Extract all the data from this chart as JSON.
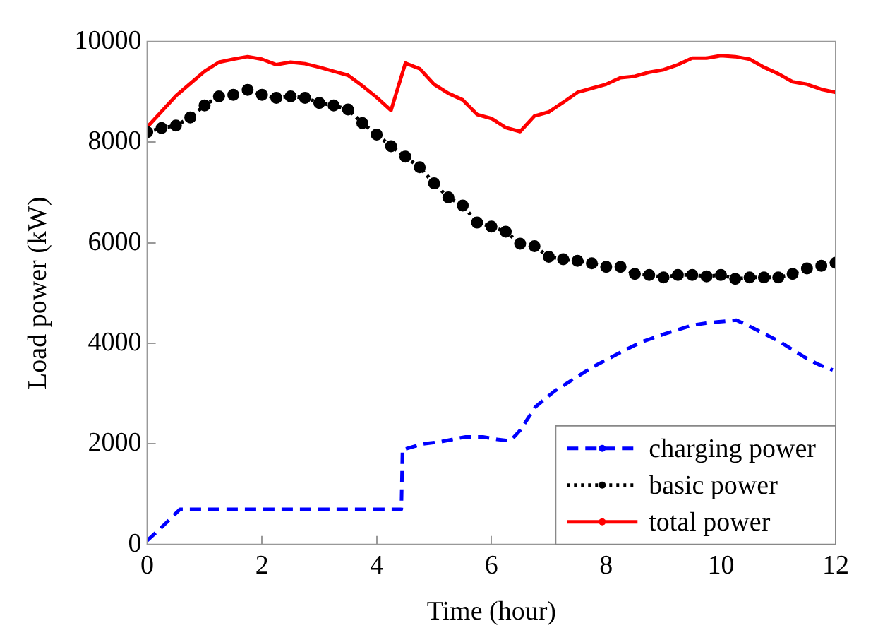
{
  "chart_data": {
    "type": "line",
    "xlabel": "Time (hour)",
    "ylabel": "Load power (kW)",
    "xlim": [
      0,
      12
    ],
    "xticks": [
      0,
      2,
      4,
      6,
      8,
      10,
      12
    ],
    "ylim": [
      0,
      10000
    ],
    "yticks": [
      0,
      2000,
      4000,
      6000,
      8000,
      10000
    ],
    "grid": false,
    "legend": "bottom right",
    "series": [
      {
        "name": "charging power",
        "color": "#0000ff",
        "line_style": "dashed",
        "marker": "none",
        "x": [
          0,
          0.25,
          0.57,
          4.43,
          4.45,
          4.5,
          4.8,
          5.1,
          5.55,
          5.85,
          6.1,
          6.33,
          6.5,
          6.77,
          7.1,
          7.5,
          7.75,
          8.2,
          8.6,
          9,
          9.5,
          9.8,
          10.27,
          10.55,
          11,
          11.45,
          11.7,
          11.95
        ],
        "values": [
          80,
          340,
          700,
          700,
          1900,
          1900,
          2000,
          2040,
          2140,
          2140,
          2090,
          2060,
          2270,
          2740,
          3050,
          3340,
          3520,
          3790,
          4020,
          4180,
          4360,
          4410,
          4460,
          4310,
          4050,
          3730,
          3580,
          3470
        ]
      },
      {
        "name": "basic power",
        "color": "#000000",
        "line_style": "dotted",
        "marker": "circle",
        "x": [
          0,
          0.25,
          0.5,
          0.75,
          1,
          1.25,
          1.5,
          1.75,
          2,
          2.25,
          2.5,
          2.75,
          3,
          3.25,
          3.5,
          3.75,
          4,
          4.25,
          4.5,
          4.75,
          5,
          5.25,
          5.5,
          5.75,
          6,
          6.25,
          6.5,
          6.75,
          7,
          7.25,
          7.5,
          7.75,
          8,
          8.25,
          8.5,
          8.75,
          9,
          9.25,
          9.5,
          9.75,
          10,
          10.25,
          10.5,
          10.75,
          11,
          11.25,
          11.5,
          11.75,
          12
        ],
        "values": [
          8200,
          8280,
          8330,
          8490,
          8730,
          8910,
          8940,
          9040,
          8940,
          8880,
          8910,
          8880,
          8780,
          8730,
          8650,
          8380,
          8150,
          7920,
          7710,
          7500,
          7180,
          6900,
          6740,
          6400,
          6320,
          6220,
          5980,
          5930,
          5720,
          5670,
          5640,
          5590,
          5520,
          5520,
          5380,
          5360,
          5310,
          5360,
          5360,
          5330,
          5360,
          5280,
          5310,
          5310,
          5310,
          5380,
          5490,
          5540,
          5600
        ]
      },
      {
        "name": "total power",
        "color": "#ff0000",
        "line_style": "solid",
        "marker": "none",
        "x": [
          0,
          0.5,
          1,
          1.25,
          1.5,
          1.75,
          2,
          2.25,
          2.5,
          2.75,
          3,
          3.25,
          3.5,
          3.75,
          4,
          4.25,
          4.5,
          4.75,
          5,
          5.25,
          5.5,
          5.75,
          6,
          6.25,
          6.5,
          6.75,
          7,
          7.25,
          7.5,
          7.75,
          8,
          8.25,
          8.5,
          8.75,
          9,
          9.25,
          9.5,
          9.75,
          10,
          10.25,
          10.5,
          10.75,
          11,
          11.25,
          11.5,
          11.75,
          12
        ],
        "values": [
          8300,
          8920,
          9410,
          9590,
          9650,
          9700,
          9650,
          9540,
          9590,
          9560,
          9490,
          9410,
          9330,
          9120,
          8890,
          8630,
          9570,
          9460,
          9150,
          8970,
          8840,
          8550,
          8470,
          8290,
          8210,
          8520,
          8600,
          8790,
          8990,
          9070,
          9150,
          9280,
          9310,
          9390,
          9440,
          9540,
          9670,
          9670,
          9720,
          9700,
          9650,
          9490,
          9360,
          9200,
          9150,
          9050,
          8990
        ]
      }
    ]
  }
}
